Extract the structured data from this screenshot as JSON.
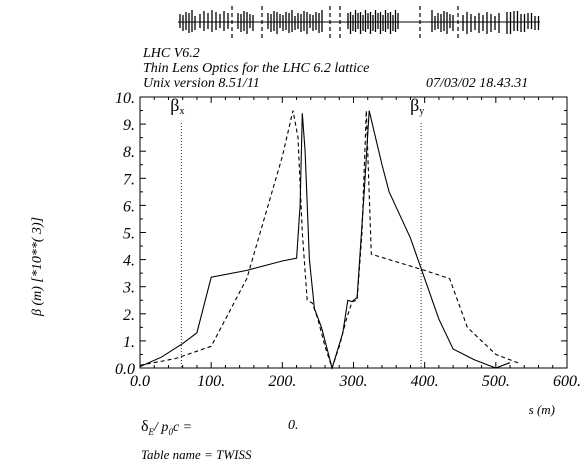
{
  "header": {
    "title": "LHC V6.2",
    "subtitle": "Thin Lens Optics for the LHC 6.2 lattice",
    "version": "Unix version 8.51/11",
    "timestamp": "07/03/02  18.43.31"
  },
  "footer": {
    "delta_label": "δ",
    "delta_sub": "E",
    "delta_mid": "/ p",
    "delta_sub2": "0",
    "delta_tail": "c   =",
    "delta_value": "0.",
    "table_name": "Table name = TWISS"
  },
  "chart_data": {
    "type": "line",
    "title": "Thin Lens Optics for the LHC 6.2 lattice",
    "xlabel": "s (m)",
    "ylabel": "β  (m)    [*10**( 3)]",
    "xlim": [
      0,
      600
    ],
    "ylim": [
      0,
      10
    ],
    "x_ticks": [
      "0.0",
      "100.",
      "200.",
      "300.",
      "400.",
      "500.",
      "600."
    ],
    "y_ticks": [
      "0.0",
      "1.",
      "2.",
      "3.",
      "4.",
      "5.",
      "6.",
      "7.",
      "8.",
      "9.",
      "10."
    ],
    "grid": false,
    "legend": [
      {
        "base": "β",
        "sub": "x",
        "x": 58,
        "y": 9.6
      },
      {
        "base": "β",
        "sub": "y",
        "x": 395,
        "y": 9.6
      }
    ],
    "markers": [
      58,
      395
    ],
    "series": [
      {
        "name": "β",
        "style": "solid",
        "x": [
          0,
          30,
          60,
          80,
          100,
          150,
          200,
          220,
          225,
          228,
          232,
          238,
          245,
          255,
          270,
          285,
          292,
          298,
          305,
          315,
          322,
          330,
          340,
          350,
          380,
          420,
          440,
          470,
          500,
          520
        ],
        "y": [
          0.05,
          0.4,
          0.9,
          1.3,
          3.35,
          3.6,
          3.95,
          4.05,
          6.0,
          9.4,
          8.0,
          4.0,
          2.2,
          1.5,
          0.0,
          1.3,
          2.5,
          2.45,
          2.6,
          6.5,
          9.5,
          8.6,
          7.5,
          6.5,
          4.8,
          1.8,
          0.7,
          0.3,
          0.0,
          0.2
        ]
      },
      {
        "name": "β",
        "style": "dashed",
        "x": [
          0,
          50,
          100,
          150,
          200,
          215,
          222,
          228,
          235,
          242,
          250,
          260,
          270,
          280,
          290,
          298,
          305,
          312,
          318,
          325,
          350,
          400,
          435,
          460,
          500,
          535
        ],
        "y": [
          0.1,
          0.35,
          0.8,
          3.3,
          7.8,
          9.5,
          8.5,
          5.0,
          2.5,
          2.4,
          1.8,
          0.8,
          0.0,
          0.8,
          1.8,
          2.45,
          2.5,
          5.0,
          9.5,
          4.2,
          4.0,
          3.6,
          3.3,
          1.5,
          0.5,
          0.15
        ]
      }
    ]
  }
}
